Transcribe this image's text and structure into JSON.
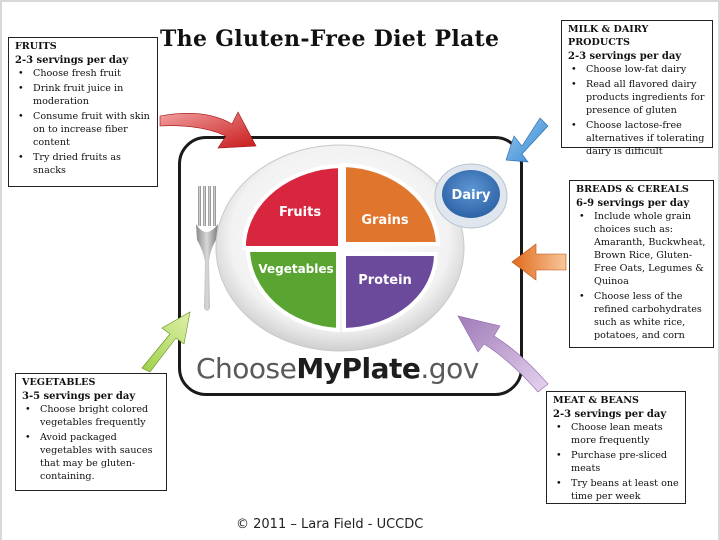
{
  "title": "The Gluten-Free Diet Plate",
  "footer": "© 2011 – Lara Field - UCCDC",
  "logo": {
    "prefix": "Choose",
    "bold": "MyPlate",
    "suffix": ".gov"
  },
  "plate": {
    "segments": [
      {
        "label": "Fruits",
        "color": "#d7263d"
      },
      {
        "label": "Grains",
        "color": "#e0762e"
      },
      {
        "label": "Vegetables",
        "color": "#5aa531"
      },
      {
        "label": "Protein",
        "color": "#6b4a9c"
      },
      {
        "label": "Dairy",
        "color": "#3f7bbf"
      }
    ]
  },
  "boxes": {
    "fruits": {
      "heading": "FRUITS",
      "servings": "2-3 servings per day",
      "items": [
        "Choose fresh fruit",
        "Drink fruit juice in moderation",
        "Consume fruit with skin on to increase fiber content",
        "Try dried fruits as snacks"
      ]
    },
    "milk": {
      "heading": "MILK & DAIRY PRODUCTS",
      "servings": "2-3 servings per day",
      "items": [
        "Choose low-fat dairy",
        "Read all flavored dairy products ingredients for presence of gluten",
        "Choose lactose-free alternatives if tolerating dairy is difficult"
      ]
    },
    "breads": {
      "heading": "BREADS & CEREALS",
      "servings": "6-9 servings per day",
      "items": [
        "Include whole grain choices such as: Amaranth, Buckwheat, Brown Rice, Gluten-Free Oats, Legumes & Quinoa",
        "Choose less of the refined carbohydrates such as white rice, potatoes, and corn"
      ]
    },
    "vegetables": {
      "heading": "VEGETABLES",
      "servings": "3-5 servings per day",
      "items": [
        "Choose bright colored vegetables frequently",
        "Avoid packaged vegetables with sauces that may be gluten-containing."
      ]
    },
    "meat": {
      "heading": "MEAT & BEANS",
      "servings": "2-3 servings per day",
      "items": [
        "Choose lean meats more frequently",
        "Purchase pre-sliced meats",
        "Try beans at least one time per week"
      ]
    }
  }
}
